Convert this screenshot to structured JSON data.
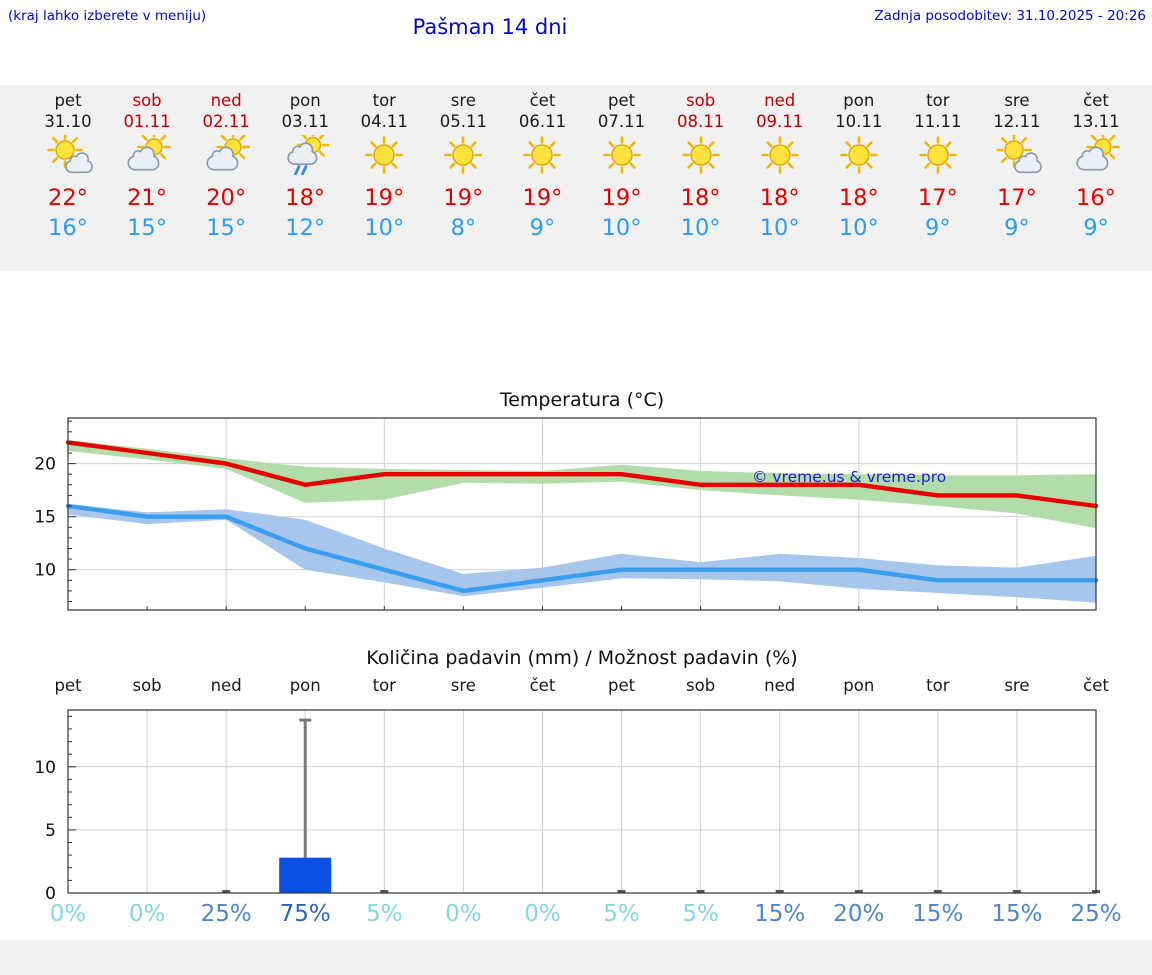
{
  "header": {
    "note": "(kraj lahko izberete v meniju)",
    "title": "Pašman 14 dni",
    "updated": "Zadnja posodobitev: 31.10.2025 - 20:26"
  },
  "watermark": "© vreme.us & vreme.pro",
  "colors": {
    "header_blue": "#0008c8",
    "weekend_red": "#c00000",
    "high_temp_red": "#e00000",
    "low_temp_blue": "#2e9bf0",
    "strip_gray": "#f1f1f1",
    "bar_blue": "#0a50e2",
    "pct_low_cyan": "#83d8de",
    "pct_mid_blue": "#4e86c8",
    "pct_high_blue": "#2a66c4"
  },
  "forecast": {
    "days": [
      {
        "name": "pet",
        "date": "31.10",
        "weekend": false,
        "icon": "partly-cloudy",
        "high": "22°",
        "low": "16°"
      },
      {
        "name": "sob",
        "date": "01.11",
        "weekend": true,
        "icon": "mostly-cloudy",
        "high": "21°",
        "low": "15°"
      },
      {
        "name": "ned",
        "date": "02.11",
        "weekend": true,
        "icon": "mostly-cloudy",
        "high": "20°",
        "low": "15°"
      },
      {
        "name": "pon",
        "date": "03.11",
        "weekend": false,
        "icon": "rain-showers",
        "high": "18°",
        "low": "12°"
      },
      {
        "name": "tor",
        "date": "04.11",
        "weekend": false,
        "icon": "sunny",
        "high": "19°",
        "low": "10°"
      },
      {
        "name": "sre",
        "date": "05.11",
        "weekend": false,
        "icon": "sunny",
        "high": "19°",
        "low": "8°"
      },
      {
        "name": "čet",
        "date": "06.11",
        "weekend": false,
        "icon": "sunny",
        "high": "19°",
        "low": "9°"
      },
      {
        "name": "pet",
        "date": "07.11",
        "weekend": false,
        "icon": "sunny",
        "high": "19°",
        "low": "10°"
      },
      {
        "name": "sob",
        "date": "08.11",
        "weekend": true,
        "icon": "sunny",
        "high": "18°",
        "low": "10°"
      },
      {
        "name": "ned",
        "date": "09.11",
        "weekend": true,
        "icon": "sunny",
        "high": "18°",
        "low": "10°"
      },
      {
        "name": "pon",
        "date": "10.11",
        "weekend": false,
        "icon": "sunny",
        "high": "18°",
        "low": "10°"
      },
      {
        "name": "tor",
        "date": "11.11",
        "weekend": false,
        "icon": "sunny",
        "high": "17°",
        "low": "9°"
      },
      {
        "name": "sre",
        "date": "12.11",
        "weekend": false,
        "icon": "partly-cloudy",
        "high": "17°",
        "low": "9°"
      },
      {
        "name": "čet",
        "date": "13.11",
        "weekend": false,
        "icon": "mostly-cloudy",
        "high": "16°",
        "low": "9°"
      }
    ]
  },
  "chart_data": [
    {
      "type": "line",
      "title": "Temperatura (°C)",
      "x": [
        "31.10",
        "01.11",
        "02.11",
        "03.11",
        "04.11",
        "05.11",
        "06.11",
        "07.11",
        "08.11",
        "09.11",
        "10.11",
        "11.11",
        "12.11",
        "13.11"
      ],
      "series": [
        {
          "name": "max temperature",
          "color": "#e60000",
          "values": [
            22,
            21,
            20,
            18,
            19,
            19,
            19,
            19,
            18,
            18,
            18,
            17,
            17,
            16
          ]
        },
        {
          "name": "min temperature",
          "color": "#3a9df0",
          "values": [
            16,
            15,
            15,
            12,
            10,
            8,
            9,
            10,
            10,
            10,
            10,
            9,
            9,
            9
          ]
        }
      ],
      "bands": [
        {
          "name": "max range",
          "color": "#b2dcaa",
          "upper": [
            22.2,
            21.4,
            20.5,
            19.7,
            19.5,
            19.4,
            19.3,
            19.9,
            19.3,
            19.1,
            19.0,
            18.9,
            18.9,
            19.0
          ],
          "lower": [
            21.2,
            20.4,
            19.5,
            16.3,
            16.6,
            18.2,
            18.1,
            18.3,
            17.5,
            17.0,
            16.6,
            16.0,
            15.3,
            13.9
          ]
        },
        {
          "name": "min range",
          "color": "#a6c6ec",
          "upper": [
            16.2,
            15.4,
            15.7,
            14.7,
            12.0,
            9.6,
            10.2,
            11.5,
            10.7,
            11.5,
            11.1,
            10.4,
            10.2,
            11.3
          ],
          "lower": [
            15.2,
            14.3,
            14.7,
            10.0,
            8.8,
            7.5,
            8.3,
            9.2,
            9.1,
            8.9,
            8.2,
            7.8,
            7.4,
            6.9
          ]
        }
      ],
      "yticks": [
        10,
        15,
        20
      ],
      "ylim": [
        6.2,
        24.3
      ],
      "grid": true,
      "legend": "none"
    },
    {
      "type": "bar",
      "title": "Količina padavin (mm) / Možnost padavin (%)",
      "categories": [
        "pet",
        "sob",
        "ned",
        "pon",
        "tor",
        "sre",
        "čet",
        "pet",
        "sob",
        "ned",
        "pon",
        "tor",
        "sre",
        "čet"
      ],
      "values_mm": [
        0,
        0,
        0,
        2.8,
        0,
        0,
        0,
        0,
        0,
        0,
        0,
        0,
        0,
        0
      ],
      "max_mm": [
        0,
        0,
        0,
        13.7,
        0,
        0,
        0,
        0,
        0,
        0,
        0,
        0,
        0,
        0
      ],
      "probability_pct": [
        0,
        0,
        25,
        75,
        5,
        0,
        0,
        5,
        5,
        15,
        20,
        15,
        15,
        25
      ],
      "yticks": [
        0,
        5,
        10
      ],
      "ylim": [
        0,
        14.5
      ],
      "grid": true
    }
  ]
}
